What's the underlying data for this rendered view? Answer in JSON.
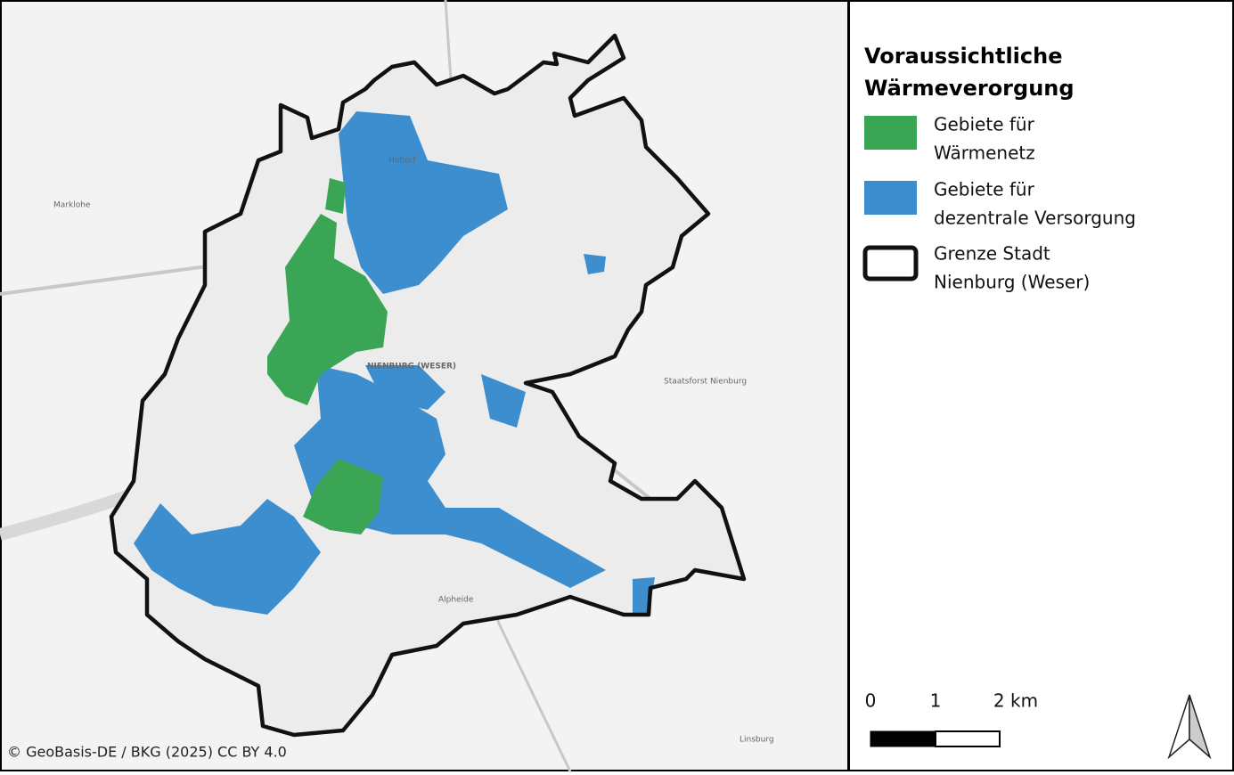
{
  "legend": {
    "title": [
      "Voraussichtliche",
      "Wärmeverorgung"
    ],
    "items": [
      {
        "label": [
          "Gebiete für",
          "Wärmenetz"
        ]
      },
      {
        "label": [
          "Gebiete für",
          "dezentrale Versorgung"
        ]
      },
      {
        "label": [
          "Grenze Stadt",
          "Nienburg (Weser)"
        ]
      }
    ]
  },
  "map": {
    "places": [
      "NIENBURG (WESER)",
      "Marklohe",
      "Alpheide",
      "Staatsforst Nienburg",
      "Linsburg",
      "Holtorf"
    ],
    "attribution": "© GeoBasis-DE / BKG (2025) CC BY 4.0"
  },
  "scale_bar": {
    "labels": [
      "0",
      "1",
      "2 km"
    ]
  }
}
